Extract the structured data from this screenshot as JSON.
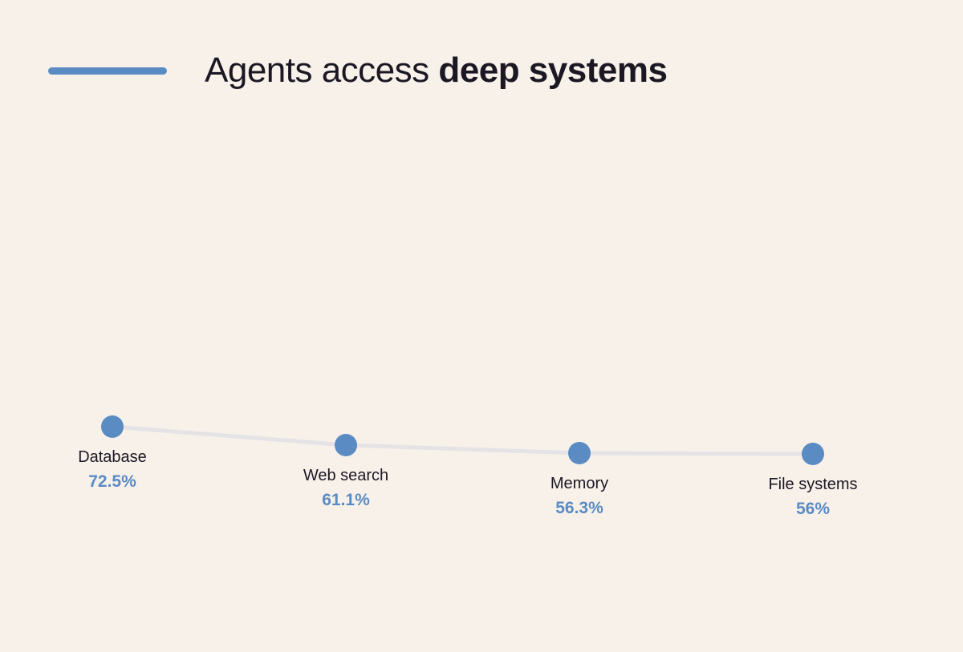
{
  "header": {
    "title_regular": "Agents access ",
    "title_bold": "deep systems"
  },
  "colors": {
    "background": "#f7f1ea",
    "accent_blue": "#5b8bc3",
    "trend_line_gray": "#e6e3e6",
    "text_dark": "#1c1823"
  },
  "chart_data": {
    "type": "line",
    "title": "Agents access deep systems",
    "categories": [
      "Database",
      "Web search",
      "Memory",
      "File systems"
    ],
    "values": [
      72.5,
      61.1,
      56.3,
      56
    ],
    "value_labels": [
      "72.5%",
      "61.1%",
      "56.3%",
      "56%"
    ],
    "xlabel": "",
    "ylabel": "",
    "ylim": [
      50,
      80
    ],
    "grid": false,
    "legend": false,
    "marker": "circle",
    "annotations": "each point labeled with category name and percentage below the marker"
  }
}
